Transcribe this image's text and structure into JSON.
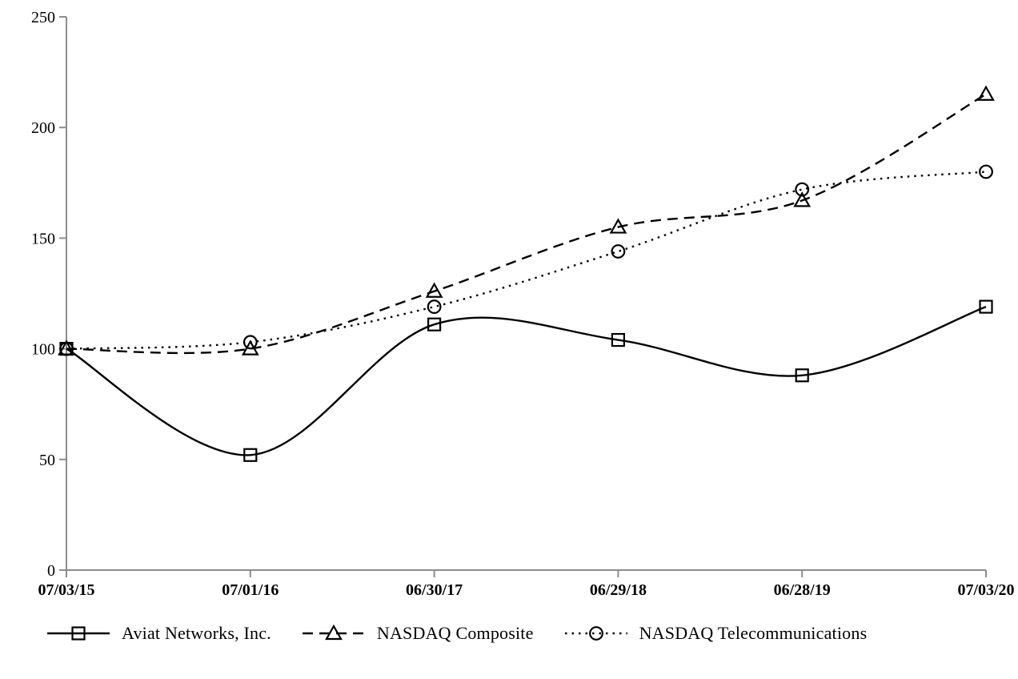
{
  "chart_data": {
    "type": "line",
    "title": "",
    "xlabel": "",
    "ylabel": "",
    "x_categories": [
      "07/03/15",
      "07/01/16",
      "06/30/17",
      "06/29/18",
      "06/28/19",
      "07/03/20"
    ],
    "ylim": [
      0,
      250
    ],
    "yticks": [
      0,
      50,
      100,
      150,
      200,
      250
    ],
    "ytick_labels": [
      "0",
      "50",
      "100",
      "150",
      "200",
      "250"
    ],
    "grid": false,
    "legend_position": "bottom",
    "line_smoothing": true,
    "series": [
      {
        "name": "Aviat Networks, Inc.",
        "line_style": "solid",
        "marker": "square",
        "values": [
          100,
          52,
          111,
          104,
          88,
          119
        ]
      },
      {
        "name": "NASDAQ Composite",
        "line_style": "dashed",
        "marker": "triangle",
        "values": [
          100,
          100,
          126,
          155,
          167,
          215
        ]
      },
      {
        "name": "NASDAQ Telecommunications",
        "line_style": "dotted",
        "marker": "circle",
        "values": [
          100,
          103,
          119,
          144,
          172,
          180
        ]
      }
    ],
    "colors": {
      "series_stroke": "#000000",
      "axis_stroke": "#8c8c8c",
      "text": "#000000",
      "background": "#ffffff"
    }
  }
}
